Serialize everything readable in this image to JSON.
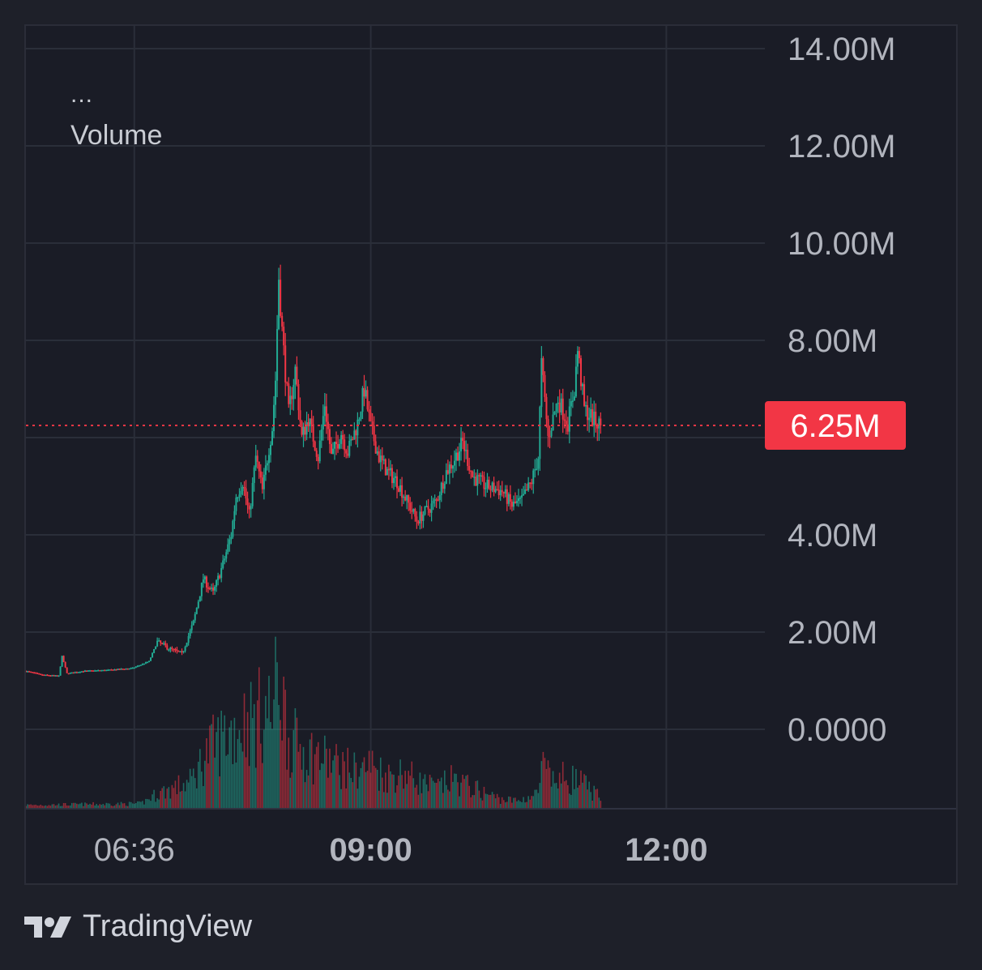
{
  "legend": {
    "menu": "...",
    "indicator": "Volume"
  },
  "brand": {
    "name": "TradingView",
    "logo_icon": "tradingview-logo-icon"
  },
  "colors": {
    "up": "#22ab94",
    "down": "#f23645",
    "price_line": "#f23645",
    "axis_text": "#b2b5be",
    "grid": "#2a2e39"
  },
  "chart_data": {
    "type": "candlestick",
    "y_axis": {
      "ticks": [
        "14.00M",
        "12.00M",
        "10.00M",
        "8.00M",
        "4.00M",
        "2.00M",
        "0.0000"
      ],
      "ylim": [
        -1500000,
        14000000
      ]
    },
    "x_axis": {
      "ticks": [
        {
          "label": "06:36",
          "bold": false,
          "minute": 396
        },
        {
          "label": "09:00",
          "bold": true,
          "minute": 540
        },
        {
          "label": "12:00",
          "bold": true,
          "minute": 720
        }
      ],
      "xlim": [
        330,
        780
      ]
    },
    "last_price": {
      "label": "6.25M",
      "value": 6250000
    },
    "price_path": [
      [
        330,
        1200000
      ],
      [
        340,
        1120000
      ],
      [
        350,
        1100000
      ],
      [
        352,
        1500000
      ],
      [
        355,
        1150000
      ],
      [
        365,
        1200000
      ],
      [
        380,
        1220000
      ],
      [
        395,
        1260000
      ],
      [
        405,
        1400000
      ],
      [
        410,
        1800000
      ],
      [
        418,
        1650000
      ],
      [
        425,
        1550000
      ],
      [
        432,
        2200000
      ],
      [
        438,
        3100000
      ],
      [
        444,
        2800000
      ],
      [
        450,
        3400000
      ],
      [
        455,
        4000000
      ],
      [
        458,
        4800000
      ],
      [
        462,
        5100000
      ],
      [
        466,
        4400000
      ],
      [
        470,
        5600000
      ],
      [
        474,
        4900000
      ],
      [
        478,
        5800000
      ],
      [
        480,
        6200000
      ],
      [
        482,
        7200000
      ],
      [
        484,
        9300000
      ],
      [
        486,
        8200000
      ],
      [
        490,
        6500000
      ],
      [
        494,
        7400000
      ],
      [
        498,
        6000000
      ],
      [
        502,
        6400000
      ],
      [
        508,
        5600000
      ],
      [
        512,
        6700000
      ],
      [
        516,
        5600000
      ],
      [
        522,
        6100000
      ],
      [
        526,
        5700000
      ],
      [
        532,
        6300000
      ],
      [
        536,
        7000000
      ],
      [
        540,
        6200000
      ],
      [
        545,
        5600000
      ],
      [
        550,
        5300000
      ],
      [
        556,
        5100000
      ],
      [
        562,
        4700000
      ],
      [
        568,
        4300000
      ],
      [
        574,
        4500000
      ],
      [
        580,
        4700000
      ],
      [
        586,
        5300000
      ],
      [
        590,
        5500000
      ],
      [
        596,
        5900000
      ],
      [
        602,
        5200000
      ],
      [
        610,
        5000000
      ],
      [
        620,
        4900000
      ],
      [
        626,
        4600000
      ],
      [
        632,
        4700000
      ],
      [
        638,
        5100000
      ],
      [
        642,
        5600000
      ],
      [
        644,
        7500000
      ],
      [
        648,
        6000000
      ],
      [
        654,
        6800000
      ],
      [
        660,
        6300000
      ],
      [
        664,
        7000000
      ],
      [
        666,
        7800000
      ],
      [
        670,
        6600000
      ],
      [
        676,
        6350000
      ],
      [
        680,
        6250000
      ]
    ],
    "volume_path": [
      [
        330,
        0.02
      ],
      [
        400,
        0.03
      ],
      [
        410,
        0.1
      ],
      [
        430,
        0.18
      ],
      [
        440,
        0.38
      ],
      [
        450,
        0.5
      ],
      [
        458,
        0.55
      ],
      [
        464,
        0.62
      ],
      [
        470,
        0.6
      ],
      [
        475,
        0.7
      ],
      [
        480,
        0.65
      ],
      [
        484,
        0.95
      ],
      [
        490,
        0.48
      ],
      [
        500,
        0.4
      ],
      [
        510,
        0.35
      ],
      [
        520,
        0.3
      ],
      [
        530,
        0.26
      ],
      [
        540,
        0.3
      ],
      [
        550,
        0.22
      ],
      [
        560,
        0.25
      ],
      [
        570,
        0.18
      ],
      [
        580,
        0.14
      ],
      [
        590,
        0.2
      ],
      [
        600,
        0.15
      ],
      [
        610,
        0.1
      ],
      [
        620,
        0.06
      ],
      [
        630,
        0.05
      ],
      [
        642,
        0.1
      ],
      [
        644,
        0.3
      ],
      [
        650,
        0.18
      ],
      [
        660,
        0.22
      ],
      [
        670,
        0.16
      ],
      [
        682,
        0.05
      ]
    ],
    "grid": true
  }
}
